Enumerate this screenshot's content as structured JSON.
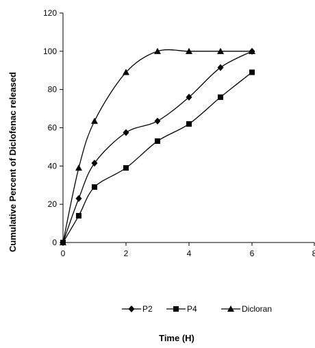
{
  "chart_data": {
    "type": "line",
    "title": "",
    "xlabel": "Time (H)",
    "ylabel": "Cumulative Percent  of Diclofenac released",
    "xlim": [
      0,
      8
    ],
    "ylim": [
      0,
      120
    ],
    "xticks": [
      0,
      2,
      4,
      6,
      8
    ],
    "yticks": [
      0,
      20,
      40,
      60,
      80,
      100,
      120
    ],
    "grid": false,
    "legend_position": "bottom",
    "series": [
      {
        "name": "P2",
        "marker": "diamond",
        "color": "#000000",
        "points": [
          [
            0,
            0
          ],
          [
            0.5,
            23
          ],
          [
            1,
            41.5
          ],
          [
            2,
            57.5
          ],
          [
            3,
            63.5
          ],
          [
            4,
            76
          ],
          [
            5,
            91.5
          ],
          [
            6,
            100
          ]
        ]
      },
      {
        "name": "P4",
        "marker": "square",
        "color": "#000000",
        "points": [
          [
            0,
            0
          ],
          [
            0.5,
            14
          ],
          [
            1,
            29
          ],
          [
            2,
            39
          ],
          [
            3,
            53
          ],
          [
            4,
            62
          ],
          [
            5,
            76
          ],
          [
            6,
            89
          ]
        ]
      },
      {
        "name": "Dicloran",
        "marker": "triangle",
        "color": "#000000",
        "points": [
          [
            0,
            0
          ],
          [
            0.5,
            39
          ],
          [
            1,
            63.5
          ],
          [
            2,
            89
          ],
          [
            3,
            100
          ],
          [
            4,
            100
          ],
          [
            5,
            100
          ],
          [
            6,
            100
          ]
        ]
      }
    ]
  }
}
